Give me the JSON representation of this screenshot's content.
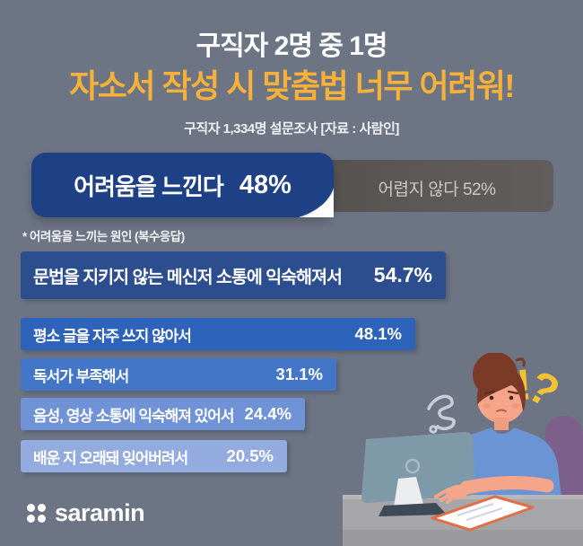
{
  "page": {
    "background": "#6d7484"
  },
  "header": {
    "title_line1": "구직자 2명 중 1명",
    "title_line2": "자소서 작성 시 맞춤법 너무 어려워!",
    "subtitle": "구직자 1,334명 설문조사 [자료 : 사람인]"
  },
  "summary_bar": {
    "difficult_label": "어려움을 느낀다",
    "difficult_value": "48%",
    "not_difficult_label": "어렵지 않다 52%"
  },
  "causes_note": "* 어려움을 느끼는 원인 (복수응답)",
  "chart_data": {
    "type": "bar",
    "orientation": "horizontal",
    "title": "어려움을 느끼는 원인 (복수응답)",
    "summary": {
      "categories": [
        "어려움을 느낀다",
        "어렵지 않다"
      ],
      "values": [
        48,
        52
      ]
    },
    "categories": [
      "문법을 지키지 않는 메신저 소통에 익숙해져서",
      "평소 글을 자주 쓰지 않아서",
      "독서가 부족해서",
      "음성, 영상 소통에 익숙해져 있어서",
      "배운 지 오래돼 잊어버려서"
    ],
    "values": [
      54.7,
      48.1,
      31.1,
      24.4,
      20.5
    ],
    "value_labels": [
      "54.7%",
      "48.1%",
      "31.1%",
      "24.4%",
      "20.5%"
    ],
    "bar_colors": [
      "#2c4d8e",
      "#2d63ba",
      "#4476c8",
      "#7093d8",
      "#94abdf"
    ],
    "xlim": [
      0,
      60
    ],
    "grid": false,
    "legend": false
  },
  "illustration": {
    "exclamation_marks": "!?"
  },
  "footer": {
    "logo_text": "saramin"
  },
  "colors": {
    "background": "#6d7484",
    "title_accent": "#f5b13a",
    "summary_difficult": "#1e4084",
    "summary_not_difficult": "#56524f",
    "desk": "#a6a6a9",
    "chair": "#7d6089",
    "monitor": "#7e99a7",
    "skin": "#f5a68a",
    "hair": "#7b3a27",
    "shirt": "#6b94d5",
    "marks_yellow": "#f2c230"
  }
}
